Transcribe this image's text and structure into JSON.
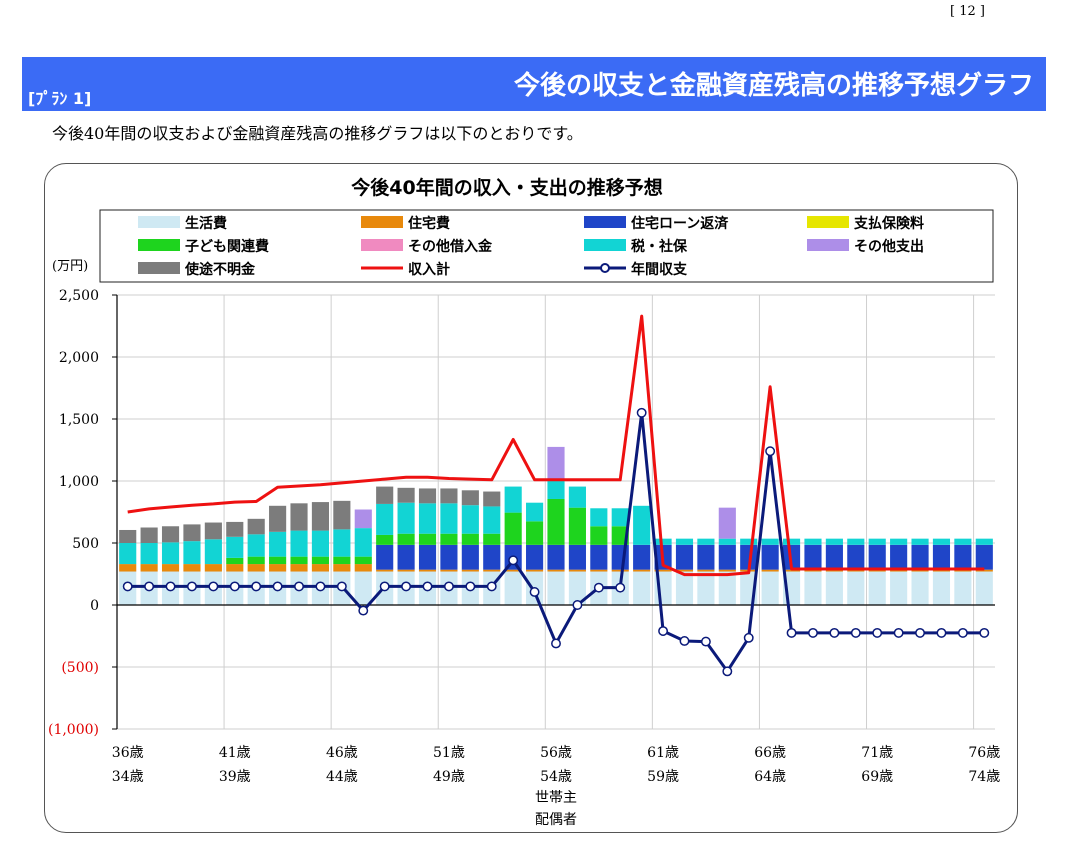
{
  "page": {
    "page_number": "[ 12 ]",
    "plan_label": "[ﾌﾟﾗﾝ 1]",
    "banner_title": "今後の収支と金融資産残高の推移予想グラフ",
    "intro_text": "今後40年間の収支および金融資産残高の推移グラフは以下のとおりです。"
  },
  "chart_data": {
    "type": "bar",
    "title": "今後40年間の収入・支出の推移予想",
    "ylabel": "(万円)",
    "ylim": [
      -1000,
      2500
    ],
    "grid": true,
    "legend_placement": "top",
    "y_ticks": [
      {
        "value": 2500,
        "label": "2,500"
      },
      {
        "value": 2000,
        "label": "2,000"
      },
      {
        "value": 1500,
        "label": "1,500"
      },
      {
        "value": 1000,
        "label": "1,000"
      },
      {
        "value": 500,
        "label": "500"
      },
      {
        "value": 0,
        "label": "0"
      },
      {
        "value": -500,
        "label": "(500)"
      },
      {
        "value": -1000,
        "label": "(1,000)"
      }
    ],
    "negative_tick_color": "#e00000",
    "x_tick_labels": [
      {
        "index": 0,
        "line1": "36歳",
        "line2": "34歳"
      },
      {
        "index": 5,
        "line1": "41歳",
        "line2": "39歳"
      },
      {
        "index": 10,
        "line1": "46歳",
        "line2": "44歳"
      },
      {
        "index": 15,
        "line1": "51歳",
        "line2": "49歳"
      },
      {
        "index": 20,
        "line1": "56歳",
        "line2": "54歳"
      },
      {
        "index": 25,
        "line1": "61歳",
        "line2": "59歳"
      },
      {
        "index": 30,
        "line1": "66歳",
        "line2": "64歳"
      },
      {
        "index": 35,
        "line1": "71歳",
        "line2": "69歳"
      },
      {
        "index": 40,
        "line1": "76歳",
        "line2": "74歳"
      }
    ],
    "row_labels": [
      "世帯主",
      "配偶者"
    ],
    "stack_series": [
      {
        "name": "生活費",
        "color": "#cfe9f3",
        "values": [
          270,
          270,
          270,
          270,
          270,
          270,
          270,
          270,
          270,
          270,
          270,
          270,
          270,
          270,
          270,
          270,
          270,
          270,
          270,
          270,
          270,
          270,
          270,
          270,
          270,
          270,
          270,
          270,
          270,
          270,
          270,
          270,
          270,
          270,
          270,
          270,
          270,
          270,
          270,
          270,
          270
        ]
      },
      {
        "name": "住宅費",
        "color": "#e8890c",
        "values": [
          60,
          60,
          60,
          60,
          60,
          60,
          60,
          60,
          60,
          60,
          60,
          60,
          15,
          15,
          15,
          15,
          15,
          15,
          15,
          15,
          15,
          15,
          15,
          15,
          15,
          15,
          15,
          15,
          15,
          15,
          15,
          15,
          15,
          15,
          15,
          15,
          15,
          15,
          15,
          15,
          15
        ]
      },
      {
        "name": "住宅ローン返済",
        "color": "#1f45c8",
        "values": [
          0,
          0,
          0,
          0,
          0,
          0,
          0,
          0,
          0,
          0,
          0,
          0,
          200,
          200,
          200,
          200,
          200,
          200,
          200,
          200,
          200,
          200,
          200,
          200,
          200,
          200,
          200,
          200,
          200,
          200,
          200,
          200,
          200,
          200,
          200,
          200,
          200,
          200,
          200,
          200,
          200
        ]
      },
      {
        "name": "支払保険料",
        "color": "#e6e600",
        "values": [
          0,
          0,
          0,
          0,
          0,
          0,
          0,
          0,
          0,
          0,
          0,
          0,
          0,
          0,
          0,
          0,
          0,
          0,
          0,
          0,
          0,
          0,
          0,
          0,
          0,
          0,
          0,
          0,
          0,
          0,
          0,
          0,
          0,
          0,
          0,
          0,
          0,
          0,
          0,
          0,
          0
        ]
      },
      {
        "name": "子ども関連費",
        "color": "#1ed41e",
        "values": [
          0,
          0,
          0,
          0,
          0,
          50,
          60,
          60,
          60,
          60,
          60,
          60,
          80,
          90,
          90,
          90,
          90,
          90,
          260,
          190,
          370,
          300,
          150,
          150,
          0,
          0,
          0,
          0,
          0,
          0,
          0,
          0,
          0,
          0,
          0,
          0,
          0,
          0,
          0,
          0,
          0
        ]
      },
      {
        "name": "その他借入金",
        "color": "#f08ac0",
        "values": [
          0,
          0,
          0,
          0,
          0,
          0,
          0,
          0,
          0,
          0,
          0,
          0,
          0,
          0,
          0,
          0,
          0,
          0,
          0,
          0,
          0,
          0,
          0,
          0,
          0,
          0,
          0,
          0,
          0,
          0,
          0,
          0,
          0,
          0,
          0,
          0,
          0,
          0,
          0,
          0,
          0
        ]
      },
      {
        "name": "税・社保",
        "color": "#12d4d4",
        "values": [
          170,
          170,
          175,
          185,
          200,
          170,
          180,
          200,
          210,
          210,
          220,
          230,
          250,
          250,
          245,
          245,
          230,
          220,
          210,
          150,
          150,
          170,
          145,
          145,
          315,
          50,
          50,
          50,
          50,
          50,
          50,
          50,
          50,
          50,
          50,
          50,
          50,
          50,
          50,
          50,
          50
        ]
      },
      {
        "name": "その他支出",
        "color": "#ad8ee8",
        "values": [
          0,
          0,
          0,
          0,
          0,
          0,
          0,
          0,
          0,
          0,
          0,
          150,
          0,
          0,
          0,
          0,
          0,
          0,
          0,
          0,
          270,
          0,
          0,
          0,
          0,
          0,
          0,
          0,
          250,
          0,
          0,
          0,
          0,
          0,
          0,
          0,
          0,
          0,
          0,
          0,
          0
        ]
      },
      {
        "name": "使途不明金",
        "color": "#7c7c7c",
        "values": [
          105,
          125,
          130,
          135,
          135,
          120,
          125,
          210,
          220,
          230,
          230,
          0,
          140,
          120,
          120,
          120,
          120,
          120,
          0,
          0,
          0,
          0,
          0,
          0,
          0,
          0,
          0,
          0,
          0,
          0,
          0,
          0,
          0,
          0,
          0,
          0,
          0,
          0,
          0,
          0,
          0
        ]
      }
    ],
    "line_series": [
      {
        "name": "収入計",
        "color": "#ee1111",
        "values": [
          750,
          775,
          790,
          805,
          815,
          830,
          835,
          950,
          960,
          970,
          985,
          1000,
          1015,
          1030,
          1030,
          1020,
          1015,
          1010,
          1335,
          1010,
          1010,
          1010,
          1010,
          1010,
          2330,
          320,
          245,
          245,
          245,
          260,
          1760,
          290,
          290,
          290,
          290,
          290,
          290,
          290,
          290,
          290,
          290
        ]
      },
      {
        "name": "年間収支",
        "color": "#0b1a7a",
        "values": [
          150,
          150,
          150,
          150,
          150,
          150,
          150,
          150,
          150,
          150,
          150,
          -45,
          150,
          150,
          150,
          150,
          150,
          150,
          360,
          105,
          -310,
          0,
          140,
          140,
          1550,
          -210,
          -290,
          -295,
          -535,
          -265,
          1240,
          -225,
          -225,
          -225,
          -225,
          -225,
          -225,
          -225,
          -225,
          -225,
          -225
        ]
      }
    ]
  }
}
